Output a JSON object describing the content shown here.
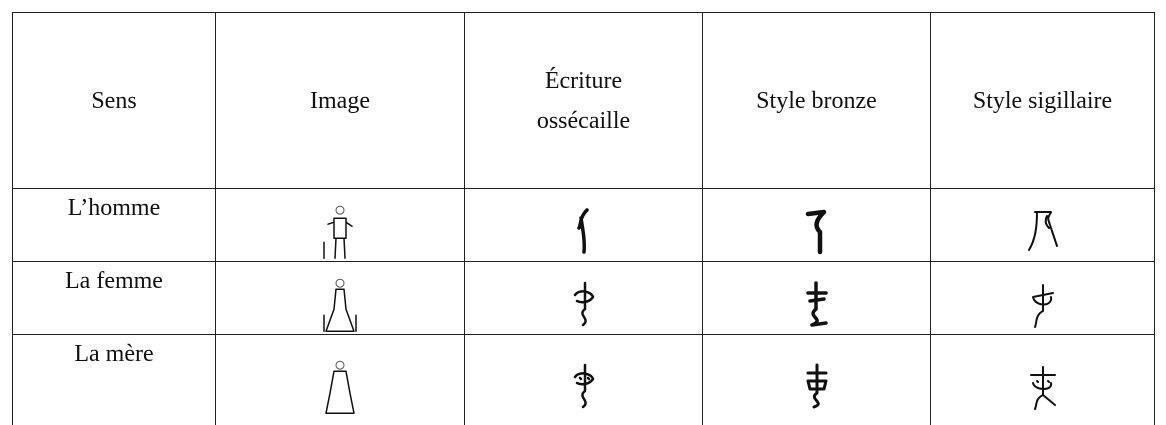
{
  "table": {
    "header": [
      "Sens",
      "Image",
      "Écriture ossécaille",
      "Style bronze",
      "Style sigillaire"
    ],
    "rows": [
      [
        "L’homme"
      ],
      [
        "La femme"
      ],
      [
        "La mère"
      ]
    ]
  }
}
